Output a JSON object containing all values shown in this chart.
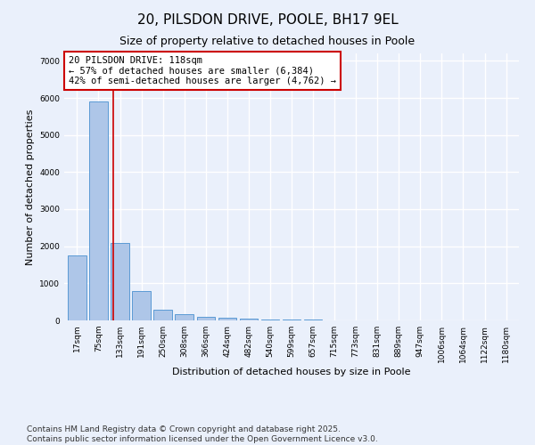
{
  "title1": "20, PILSDON DRIVE, POOLE, BH17 9EL",
  "title2": "Size of property relative to detached houses in Poole",
  "xlabel": "Distribution of detached houses by size in Poole",
  "ylabel": "Number of detached properties",
  "categories": [
    "17sqm",
    "75sqm",
    "133sqm",
    "191sqm",
    "250sqm",
    "308sqm",
    "366sqm",
    "424sqm",
    "482sqm",
    "540sqm",
    "599sqm",
    "657sqm",
    "715sqm",
    "773sqm",
    "831sqm",
    "889sqm",
    "947sqm",
    "1006sqm",
    "1064sqm",
    "1122sqm",
    "1180sqm"
  ],
  "values": [
    1750,
    5900,
    2100,
    800,
    300,
    175,
    100,
    65,
    50,
    30,
    20,
    15,
    10,
    5,
    2,
    1,
    0,
    0,
    0,
    0,
    0
  ],
  "bar_color": "#aec6e8",
  "bar_edge_color": "#5b9bd5",
  "vline_x": 1.7,
  "vline_color": "#cc0000",
  "annotation_box_text": "20 PILSDON DRIVE: 118sqm\n← 57% of detached houses are smaller (6,384)\n42% of semi-detached houses are larger (4,762) →",
  "annotation_box_color": "#cc0000",
  "annotation_fontsize": 7.5,
  "ylim": [
    0,
    7200
  ],
  "yticks": [
    0,
    1000,
    2000,
    3000,
    4000,
    5000,
    6000,
    7000
  ],
  "background_color": "#eaf0fb",
  "plot_bg_color": "#eaf0fb",
  "grid_color": "#ffffff",
  "footnote": "Contains HM Land Registry data © Crown copyright and database right 2025.\nContains public sector information licensed under the Open Government Licence v3.0.",
  "title_fontsize": 11,
  "subtitle_fontsize": 9,
  "axis_label_fontsize": 8,
  "tick_fontsize": 6.5,
  "footnote_fontsize": 6.5
}
